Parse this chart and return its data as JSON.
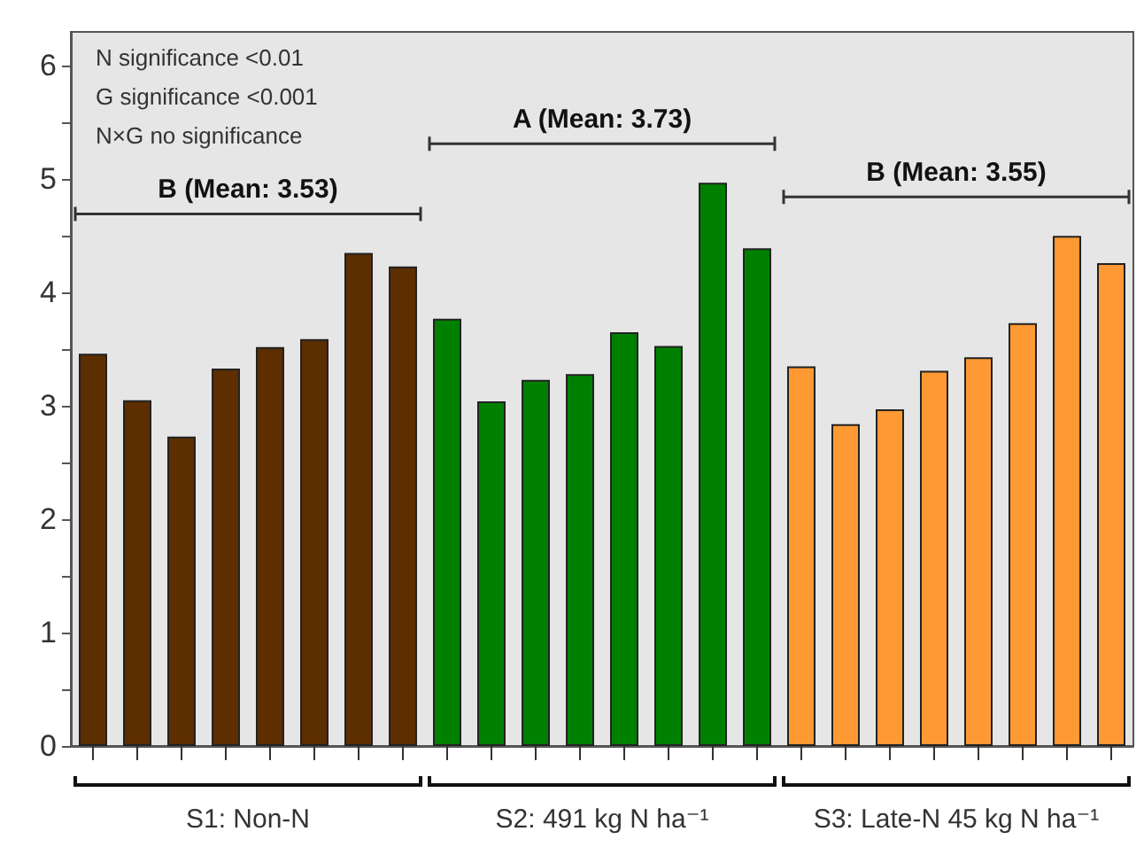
{
  "chart_data": {
    "type": "bar",
    "stacked": true,
    "grid": false,
    "legend": false,
    "categories": [
      null,
      null,
      null,
      null,
      null,
      null,
      null,
      null,
      null,
      null,
      null,
      null,
      null,
      null,
      null,
      null,
      null,
      null,
      null,
      null,
      null,
      null,
      null,
      null
    ],
    "series": [
      {
        "name": "S1: Non-N",
        "color": "#5c2e00",
        "values": [
          3.46,
          3.05,
          2.73,
          3.33,
          3.52,
          3.59,
          4.35,
          4.23,
          null,
          null,
          null,
          null,
          null,
          null,
          null,
          null,
          null,
          null,
          null,
          null,
          null,
          null,
          null,
          null
        ]
      },
      {
        "name": "S2: 491 kg N ha⁻¹",
        "color": "#008000",
        "values": [
          null,
          null,
          null,
          null,
          null,
          null,
          null,
          null,
          3.77,
          3.04,
          3.23,
          3.28,
          3.65,
          3.53,
          4.97,
          4.39,
          null,
          null,
          null,
          null,
          null,
          null,
          null,
          null
        ]
      },
      {
        "name": "S3: Late-N 45 kg N ha⁻¹",
        "color": "#ff9933",
        "values": [
          null,
          null,
          null,
          null,
          null,
          null,
          null,
          null,
          null,
          null,
          null,
          null,
          null,
          null,
          null,
          null,
          3.35,
          2.84,
          2.97,
          3.31,
          3.43,
          3.73,
          4.5,
          4.26
        ]
      }
    ],
    "ylim": [
      0,
      6.3
    ],
    "yticks": [
      0,
      {
        "value": 0.5,
        "label": null
      },
      1,
      {
        "value": 1.5,
        "label": null
      },
      2,
      {
        "value": 2.5,
        "label": null
      },
      3,
      {
        "value": 3.5,
        "label": null
      },
      4,
      {
        "value": 4.5,
        "label": null
      },
      5,
      {
        "value": 5.5,
        "label": null
      },
      6
    ],
    "annotations": [
      "N significance <0.01",
      "G significance <0.001",
      "N×G no significance",
      "B (Mean: 3.53)",
      "A (Mean: 3.73)",
      "B (Mean: 3.55)"
    ]
  }
}
